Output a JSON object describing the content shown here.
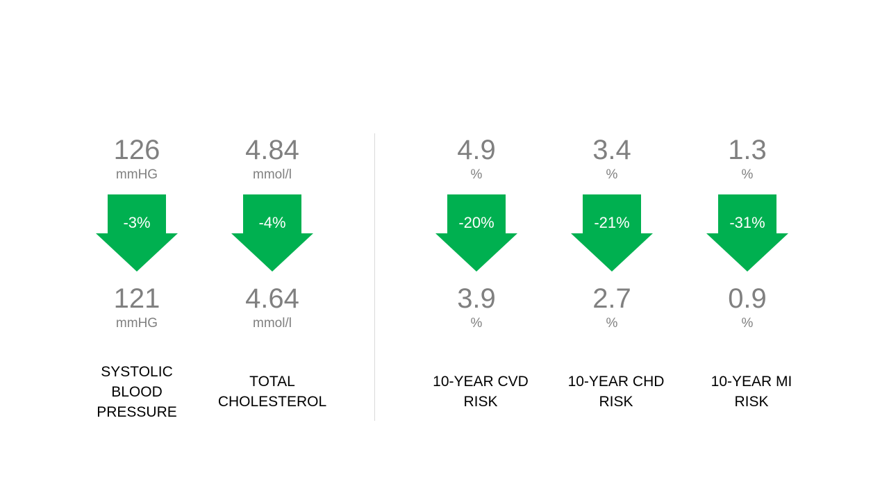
{
  "colors": {
    "arrow": "#00b050",
    "value_text": "#808080",
    "label_text": "#000000",
    "divider": "#d9d9d9"
  },
  "metrics": [
    {
      "before_value": "126",
      "before_unit": "mmHG",
      "change": "-3%",
      "after_value": "121",
      "after_unit": "mmHG",
      "label_lines": [
        "SYSTOLIC",
        "BLOOD",
        "PRESSURE"
      ]
    },
    {
      "before_value": "4.84",
      "before_unit": "mmol/l",
      "change": "-4%",
      "after_value": "4.64",
      "after_unit": "mmol/l",
      "label_lines": [
        "TOTAL",
        "CHOLESTEROL"
      ]
    },
    {
      "before_value": "4.9",
      "before_unit": "%",
      "change": "-20%",
      "after_value": "3.9",
      "after_unit": "%",
      "label_lines": [
        "10-YEAR CVD",
        "RISK"
      ]
    },
    {
      "before_value": "3.4",
      "before_unit": "%",
      "change": "-21%",
      "after_value": "2.7",
      "after_unit": "%",
      "label_lines": [
        "10-YEAR CHD",
        "RISK"
      ]
    },
    {
      "before_value": "1.3",
      "before_unit": "%",
      "change": "-31%",
      "after_value": "0.9",
      "after_unit": "%",
      "label_lines": [
        "10-YEAR MI",
        "RISK"
      ]
    }
  ]
}
